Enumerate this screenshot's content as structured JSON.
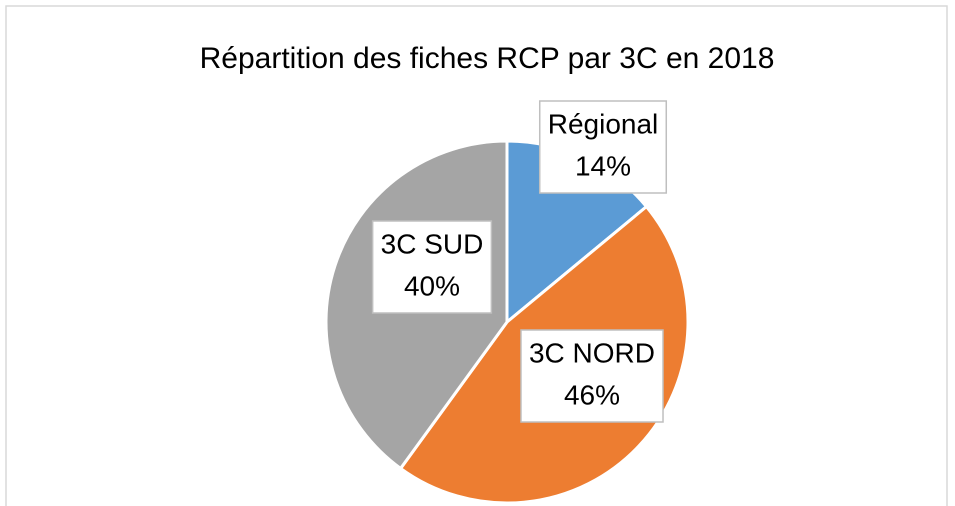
{
  "chart_data": {
    "type": "pie",
    "title": "Répartition des fiches RCP par 3C en 2018",
    "categories": [
      "Régional",
      "3C NORD",
      "3C SUD"
    ],
    "values": [
      14,
      46,
      40
    ],
    "value_labels": [
      "14%",
      "46%",
      "40%"
    ],
    "colors": [
      "#5b9bd5",
      "#ed7d31",
      "#a5a5a5"
    ]
  }
}
